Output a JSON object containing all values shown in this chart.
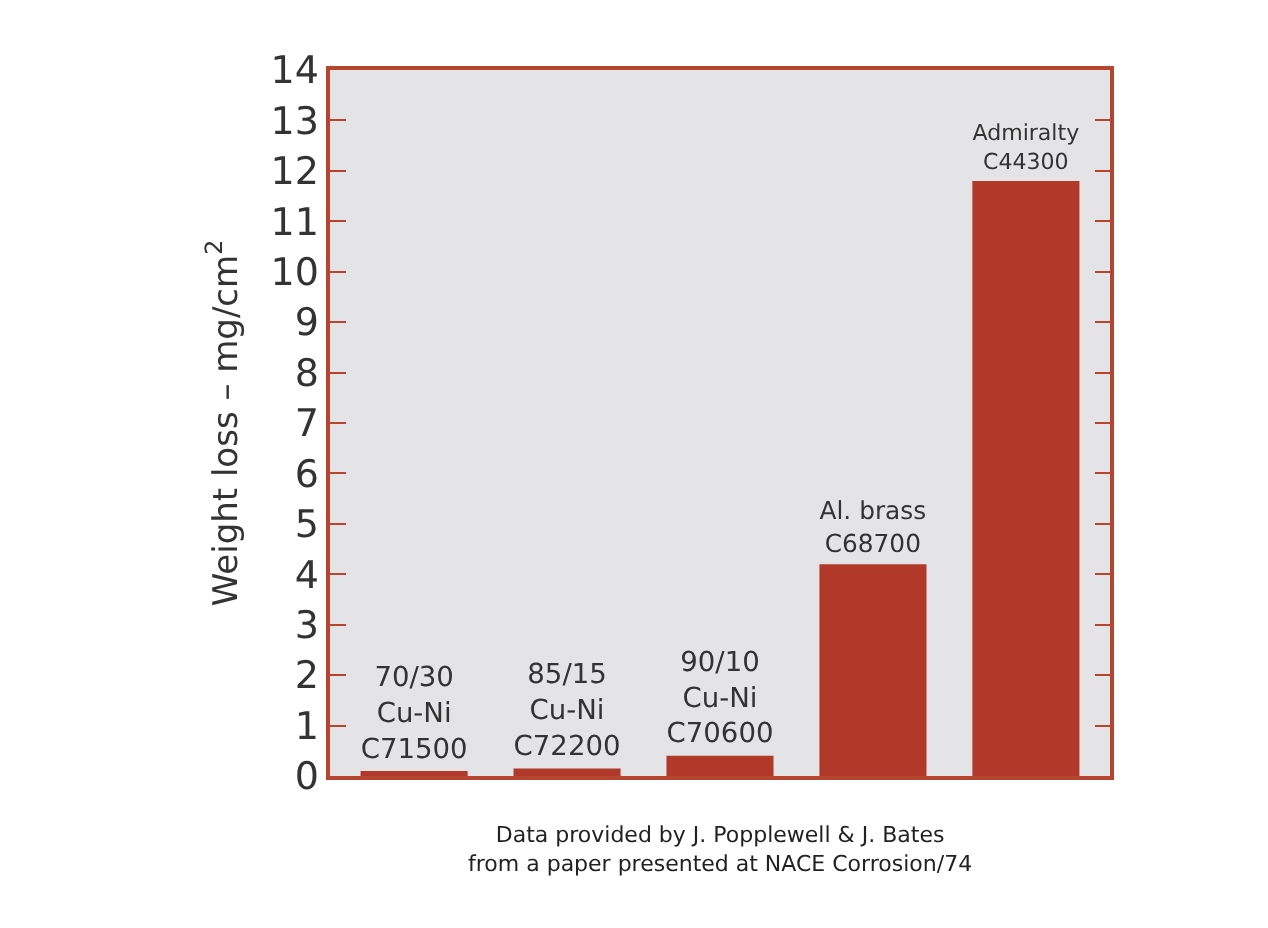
{
  "chart_data": {
    "type": "bar",
    "ylabel": "Weight loss – mg/cm$^{2}$",
    "categories": [
      "70/30\nCu-Ni\nC71500",
      "85/15\nCu-Ni\nC72200",
      "90/10\nCu-Ni\nC70600",
      "Al. brass\nC68700",
      "Admiralty\nC44300"
    ],
    "values": [
      0.1,
      0.15,
      0.4,
      4.2,
      11.8
    ],
    "color": "#b0392a",
    "ylim": [
      0,
      14
    ],
    "yticks": [
      0,
      1,
      2,
      3,
      4,
      5,
      6,
      7,
      8,
      9,
      10,
      11,
      12,
      13,
      14
    ],
    "grid": false,
    "legend": false,
    "tick_labels": "y",
    "annotations": [
      "Data provided by J. Popplewell & J. Bates\nfrom a paper presented at NACE Corrosion/74"
    ]
  }
}
